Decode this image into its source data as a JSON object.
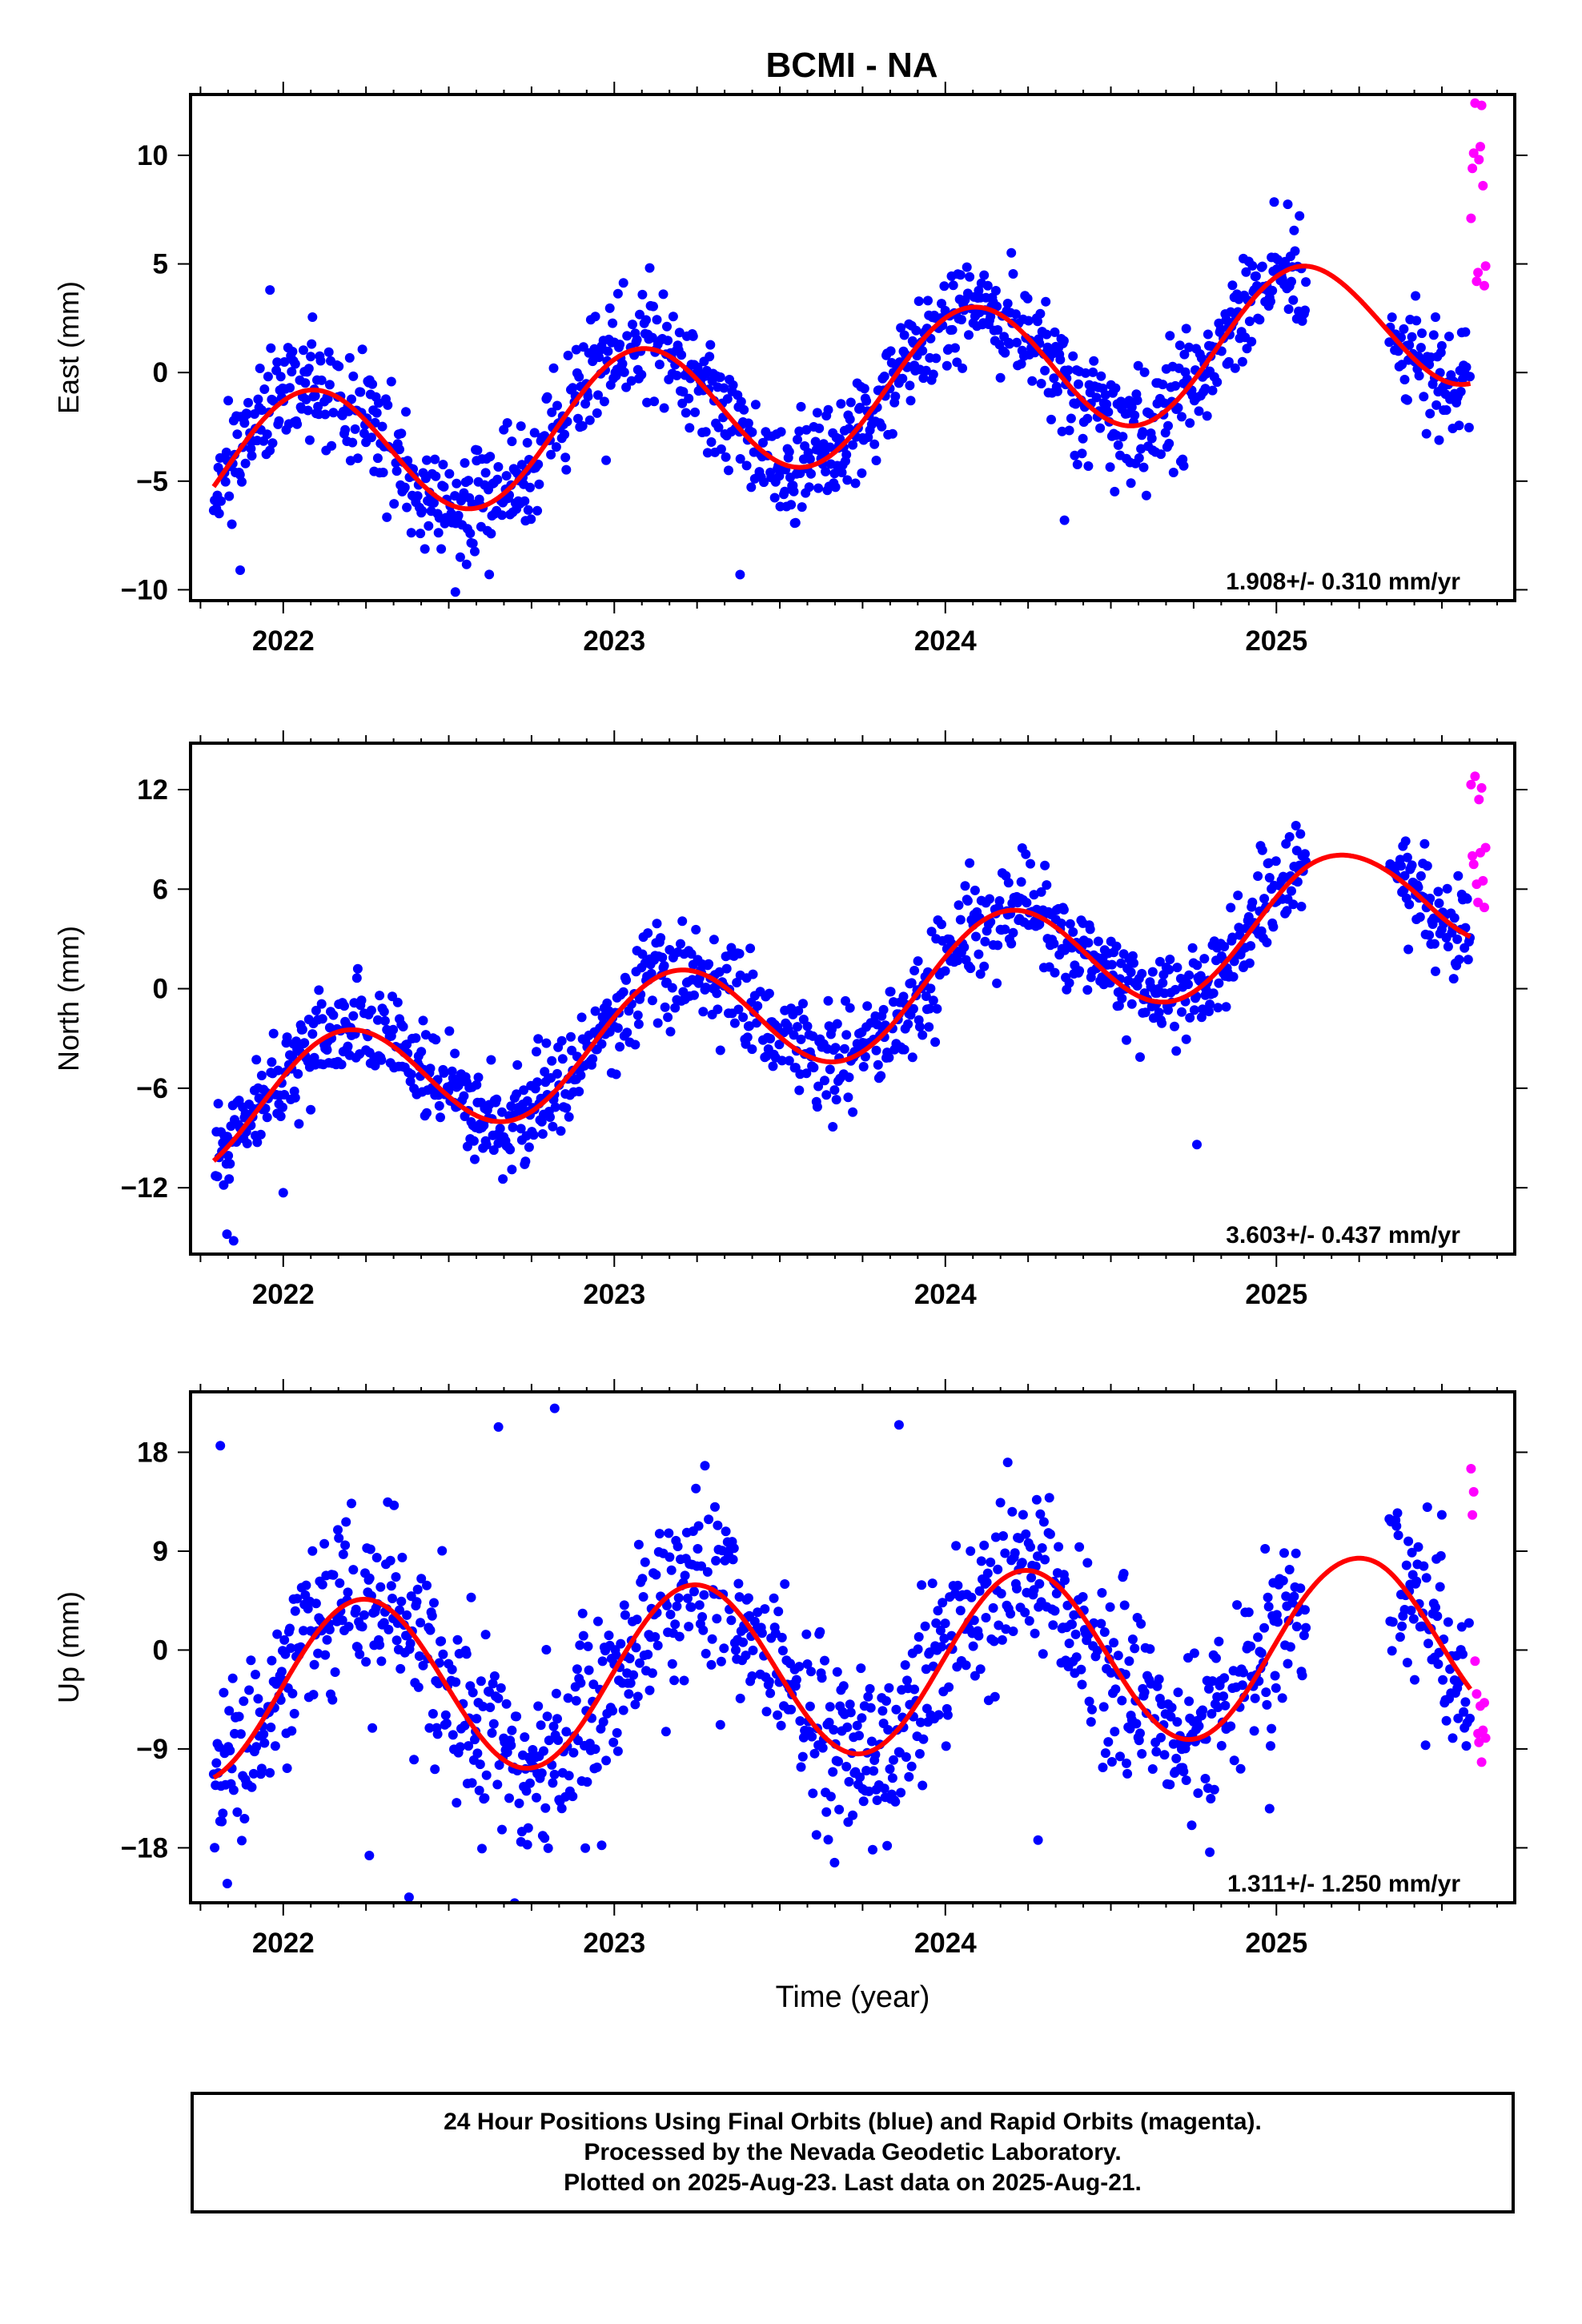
{
  "title": "BCMI - NA",
  "footer": {
    "line1": "24 Hour Positions Using Final Orbits (blue) and Rapid Orbits (magenta).",
    "line2": "Processed by the Nevada Geodetic Laboratory.",
    "line3": "Plotted on 2025-Aug-23. Last data on 2025-Aug-21."
  },
  "colors": {
    "final_orbits": "#0000ff",
    "rapid_orbits": "#ff00ff",
    "model_fit": "#ff0000"
  },
  "chart_data": [
    {
      "type": "scatter",
      "panel": "east",
      "ylabel": "East (mm)",
      "xlabel": "",
      "rate_text": "1.908+/- 0.310 mm/yr",
      "xlim": [
        2021.72,
        2025.72
      ],
      "ylim": [
        -10.5,
        12.8
      ],
      "xticks": [
        2022,
        2023,
        2024,
        2025
      ],
      "yticks": [
        -10,
        -5,
        0,
        5,
        10
      ],
      "fit": {
        "offset": -2.25,
        "rate": 1.908,
        "amp_cos": 2.85,
        "amp_sin": 1.45,
        "gap": [
          2025.05,
          2025.42
        ],
        "gap_end_value": -0.5
      },
      "data_start": 2021.79,
      "gap_start": 2025.09,
      "resume": 2025.34,
      "final_end": 2025.586,
      "rapid_end": 2025.64,
      "noise_sd": 1.25,
      "outliers": [
        [
          2021.87,
          -9.1
        ],
        [
          2022.52,
          -10.1
        ],
        [
          2023.38,
          -9.3
        ],
        [
          2024.36,
          -6.8
        ],
        [
          2024.72,
          -4.3
        ],
        [
          2021.96,
          3.8
        ]
      ],
      "rapid_points": [
        [
          2025.588,
          7.1
        ],
        [
          2025.592,
          9.4
        ],
        [
          2025.596,
          10.1
        ],
        [
          2025.6,
          12.4
        ],
        [
          2025.605,
          4.2
        ],
        [
          2025.609,
          4.6
        ],
        [
          2025.612,
          9.8
        ],
        [
          2025.616,
          10.4
        ],
        [
          2025.62,
          12.3
        ],
        [
          2025.624,
          8.6
        ],
        [
          2025.628,
          4.0
        ],
        [
          2025.632,
          4.9
        ]
      ],
      "seed": 11
    },
    {
      "type": "scatter",
      "panel": "north",
      "ylabel": "North (mm)",
      "xlabel": "",
      "rate_text": "3.603+/- 0.437 mm/yr",
      "xlim": [
        2021.72,
        2025.72
      ],
      "ylim": [
        -16,
        14.8
      ],
      "xticks": [
        2022,
        2023,
        2024,
        2025
      ],
      "yticks": [
        -12,
        -6,
        0,
        6,
        12
      ],
      "fit": {
        "offset": -3.2,
        "rate": 3.603,
        "amp_cos": 1.5,
        "amp_sin": 3.3,
        "gap": [
          2025.05,
          2025.45
        ],
        "gap_end_value": 9.2
      },
      "data_start": 2021.79,
      "gap_start": 2025.09,
      "resume": 2025.34,
      "final_end": 2025.586,
      "rapid_end": 2025.64,
      "noise_sd": 1.45,
      "outliers": [
        [
          2021.83,
          -14.8
        ],
        [
          2021.85,
          -15.2
        ],
        [
          2024.76,
          -9.4
        ],
        [
          2023.57,
          -0.9
        ],
        [
          2022.0,
          -12.3
        ]
      ],
      "rapid_points": [
        [
          2025.588,
          12.3
        ],
        [
          2025.592,
          8.0
        ],
        [
          2025.596,
          7.5
        ],
        [
          2025.6,
          12.8
        ],
        [
          2025.605,
          6.3
        ],
        [
          2025.609,
          5.2
        ],
        [
          2025.612,
          11.4
        ],
        [
          2025.616,
          8.2
        ],
        [
          2025.62,
          12.1
        ],
        [
          2025.624,
          6.5
        ],
        [
          2025.628,
          4.9
        ],
        [
          2025.632,
          8.5
        ]
      ],
      "seed": 23
    },
    {
      "type": "scatter",
      "panel": "up",
      "ylabel": "Up (mm)",
      "xlabel": "Time (year)",
      "rate_text": "1.311+/- 1.250 mm/yr",
      "xlim": [
        2021.72,
        2025.72
      ],
      "ylim": [
        -23,
        23.5
      ],
      "xticks": [
        2022,
        2023,
        2024,
        2025
      ],
      "yticks": [
        -18,
        -9,
        0,
        9,
        18
      ],
      "fit": {
        "offset": -2.4,
        "rate": 1.311,
        "amp_cos": 0.5,
        "amp_sin": 8.0,
        "gap": [
          2025.05,
          2025.35
        ],
        "gap_end_value": -5.0
      },
      "data_start": 2021.79,
      "gap_start": 2025.09,
      "resume": 2025.34,
      "final_end": 2025.586,
      "rapid_end": 2025.64,
      "noise_sd": 4.2,
      "outliers": [
        [
          2022.38,
          -22.5
        ],
        [
          2022.82,
          22.0
        ],
        [
          2023.86,
          20.5
        ],
        [
          2021.81,
          18.6
        ],
        [
          2022.65,
          20.3
        ],
        [
          2022.26,
          -18.7
        ],
        [
          2024.28,
          -17.3
        ]
      ],
      "rapid_points": [
        [
          2025.588,
          16.5
        ],
        [
          2025.592,
          12.3
        ],
        [
          2025.596,
          14.4
        ],
        [
          2025.6,
          -1.0
        ],
        [
          2025.605,
          -4.0
        ],
        [
          2025.609,
          -7.6
        ],
        [
          2025.612,
          -8.4
        ],
        [
          2025.616,
          -5.1
        ],
        [
          2025.62,
          -10.2
        ],
        [
          2025.624,
          -7.3
        ],
        [
          2025.628,
          -4.8
        ],
        [
          2025.632,
          -8.0
        ]
      ],
      "seed": 37
    }
  ]
}
